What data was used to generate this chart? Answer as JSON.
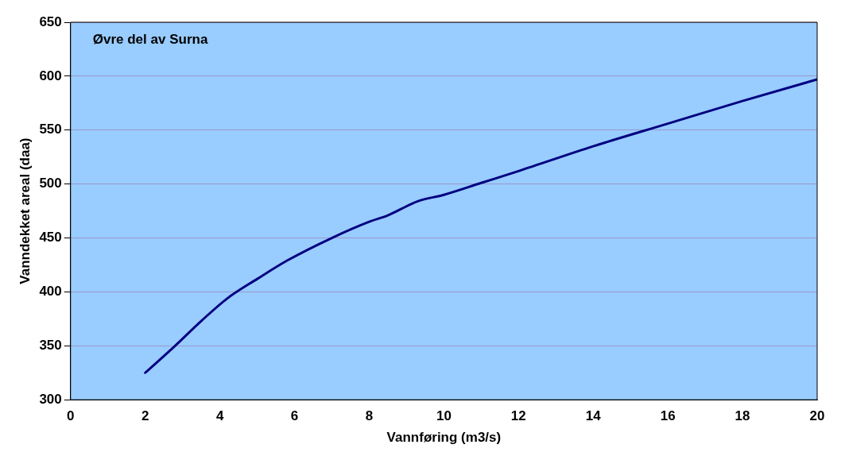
{
  "chart_data": {
    "type": "line",
    "xlabel": "Vannføring (m3/s)",
    "ylabel": "Vanndekket areal (daa)",
    "annotations": [
      "Øvre del av Surna"
    ],
    "x": [
      2,
      2.8,
      3.5,
      4.2,
      5,
      5.8,
      7,
      8,
      8.5,
      9.3,
      10,
      11,
      12,
      14,
      16,
      18,
      20
    ],
    "series": [
      {
        "color": "#000080",
        "values": [
          325,
          350,
          373,
          394,
          412,
          429,
          450,
          465,
          471,
          484,
          490,
          501,
          512,
          535,
          556,
          577,
          597
        ]
      }
    ],
    "xlim": [
      0,
      20
    ],
    "xticks": [
      0,
      2,
      4,
      6,
      8,
      10,
      12,
      14,
      16,
      18,
      20
    ],
    "ylim": [
      300,
      650
    ],
    "yticks": [
      300,
      350,
      400,
      450,
      500,
      550,
      600,
      650
    ],
    "grid": "y",
    "legend": false,
    "marker": "none",
    "line_style": "solid"
  }
}
